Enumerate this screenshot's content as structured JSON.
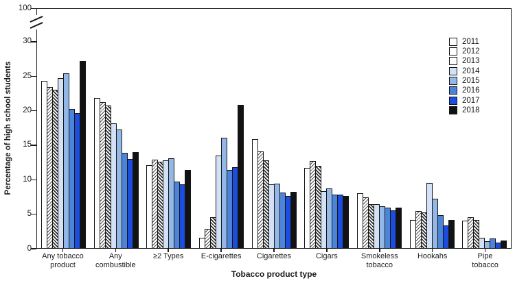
{
  "chart_data": {
    "type": "bar",
    "title": "",
    "xlabel": "Tobacco product type",
    "ylabel": "Percentage of high school students",
    "y_ticks": [
      0,
      5,
      10,
      15,
      20,
      25,
      30
    ],
    "y_axis_break": {
      "shown": true,
      "upper_tick_label": "100"
    },
    "ylim": [
      0,
      30
    ],
    "grid": false,
    "legend_position": "top-right-inside",
    "categories": [
      "Any tobacco\nproduct",
      "Any\ncombustible",
      "≥2 Types",
      "E-cigarettes",
      "Cigarettes",
      "Cigars",
      "Smokeless\ntobacco",
      "Hookahs",
      "Pipe\ntobacco"
    ],
    "series": [
      {
        "name": "2011",
        "fill": "#ffffff",
        "pattern": "none",
        "values": [
          24.2,
          21.8,
          12.0,
          1.5,
          15.8,
          11.6,
          7.9,
          4.1,
          4.0
        ]
      },
      {
        "name": "2012",
        "fill": "#ffffff",
        "pattern": "hatch-light",
        "values": [
          23.3,
          21.2,
          12.8,
          2.8,
          14.0,
          12.6,
          7.4,
          5.4,
          4.5
        ]
      },
      {
        "name": "2013",
        "fill": "#ffffff",
        "pattern": "hatch-dark",
        "values": [
          22.9,
          20.7,
          12.5,
          4.5,
          12.7,
          11.9,
          6.4,
          5.2,
          4.1
        ]
      },
      {
        "name": "2014",
        "fill": "#d2e1f5",
        "pattern": "none",
        "values": [
          24.6,
          18.1,
          12.7,
          13.4,
          9.2,
          8.2,
          6.4,
          9.4,
          1.5
        ]
      },
      {
        "name": "2015",
        "fill": "#93b8e7",
        "pattern": "none",
        "values": [
          25.3,
          17.2,
          13.0,
          16.0,
          9.3,
          8.6,
          6.1,
          7.2,
          1.0
        ]
      },
      {
        "name": "2016",
        "fill": "#4c84d9",
        "pattern": "none",
        "values": [
          20.2,
          13.8,
          9.6,
          11.3,
          8.0,
          7.7,
          5.9,
          4.8,
          1.4
        ]
      },
      {
        "name": "2017",
        "fill": "#1b4ede",
        "pattern": "none",
        "values": [
          19.6,
          12.9,
          9.2,
          11.7,
          7.6,
          7.7,
          5.5,
          3.3,
          0.8
        ]
      },
      {
        "name": "2018",
        "fill": "#121212",
        "pattern": "none",
        "values": [
          27.1,
          13.9,
          11.3,
          20.8,
          8.1,
          7.6,
          5.9,
          4.1,
          1.1
        ]
      }
    ],
    "colors": {
      "bar_outline": "#141414",
      "axis": "#1a1a1a",
      "background": "#ffffff"
    }
  }
}
